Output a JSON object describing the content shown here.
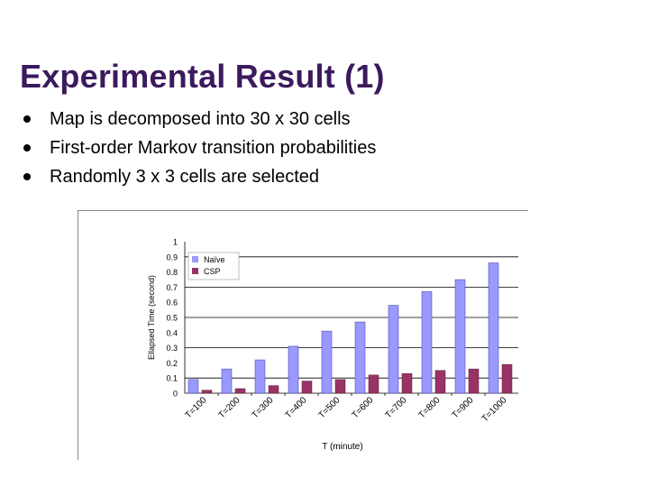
{
  "slide": {
    "title": "Experimental Result (1)",
    "bullets": [
      "Map is decomposed into 30 x 30 cells",
      "First-order Markov transition probabilities",
      "Randomly 3 x 3 cells are selected"
    ]
  },
  "chart_data": {
    "type": "bar",
    "categories": [
      "T=100",
      "T=200",
      "T=300",
      "T=400",
      "T=500",
      "T=600",
      "T=700",
      "T=800",
      "T=900",
      "T=1000"
    ],
    "series": [
      {
        "name": "Naïve",
        "color": "#9999ff",
        "values": [
          0.09,
          0.16,
          0.22,
          0.31,
          0.41,
          0.47,
          0.58,
          0.67,
          0.75,
          0.86
        ]
      },
      {
        "name": "CSP",
        "color": "#993366",
        "values": [
          0.02,
          0.03,
          0.05,
          0.08,
          0.09,
          0.12,
          0.13,
          0.15,
          0.16,
          0.19
        ]
      }
    ],
    "yticks": [
      "0",
      "0.1",
      "0.2",
      "0.3",
      "0.4",
      "0.5",
      "0.6",
      "0.7",
      "0.8",
      "0.9",
      "1"
    ],
    "ylim": [
      0,
      1
    ],
    "ylabel": "Ellapsed Time (second)",
    "xlabel": "T (minute)",
    "grid": true,
    "legend": "top-left"
  }
}
